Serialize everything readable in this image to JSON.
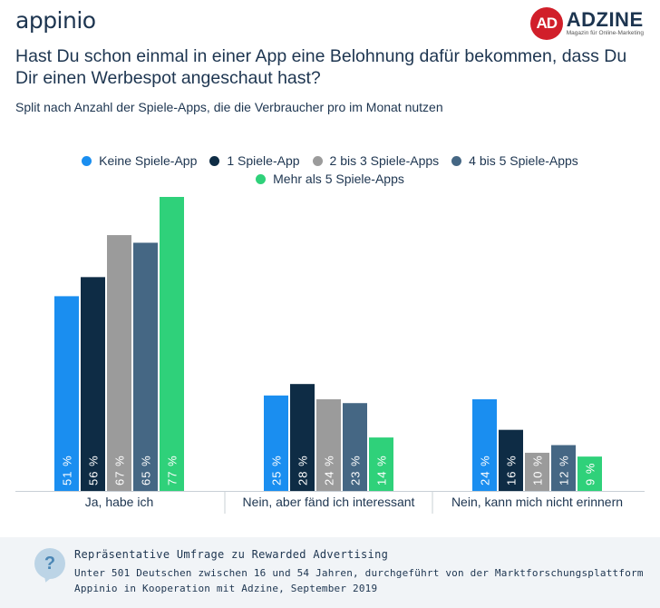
{
  "brand": {
    "left_logo": "appinio",
    "right_logo": "ADZINE",
    "right_logo_mark": "AD",
    "right_logo_tagline": "Magazin für Online-Marketing"
  },
  "header": {
    "title": "Hast Du schon einmal in einer App eine Belohnung dafür bekommen, dass Du Dir einen Werbespot angeschaut hast?",
    "subtitle": "Split nach Anzahl der Spiele-Apps, die die Verbraucher pro im Monat nutzen"
  },
  "chart_data": {
    "type": "bar",
    "title": "Hast Du schon einmal in einer App eine Belohnung dafür bekommen, dass Du Dir einen Werbespot angeschaut hast?",
    "subtitle": "Split nach Anzahl der Spiele-Apps, die die Verbraucher pro im Monat nutzen",
    "categories": [
      "Ja, habe ich",
      "Nein, aber fänd ich interessant",
      "Nein, kann mich nicht erinnern"
    ],
    "series": [
      {
        "name": "Keine Spiele-App",
        "color": "#1a8ef0",
        "values": [
          51,
          25,
          24
        ]
      },
      {
        "name": "1 Spiele-App",
        "color": "#0e2c45",
        "values": [
          56,
          28,
          16
        ]
      },
      {
        "name": "2 bis 3 Spiele-Apps",
        "color": "#9b9b9b",
        "values": [
          67,
          24,
          10
        ]
      },
      {
        "name": "4 bis 5 Spiele-Apps",
        "color": "#456784",
        "values": [
          65,
          23,
          12
        ]
      },
      {
        "name": "Mehr als 5 Spiele-Apps",
        "color": "#2fd17a",
        "values": [
          77,
          14,
          9
        ]
      }
    ],
    "value_suffix": " %",
    "legend_position": "top",
    "ylim": [
      0,
      77
    ],
    "grid": false
  },
  "footer": {
    "title": "Repräsentative Umfrage zu Rewarded Advertising",
    "line1": "Unter 501 Deutschen zwischen 16 und 54 Jahren, durchgeführt von der Marktforschungsplattform",
    "line2": "Appinio in Kooperation mit Adzine, September 2019",
    "icon": "question-icon"
  }
}
